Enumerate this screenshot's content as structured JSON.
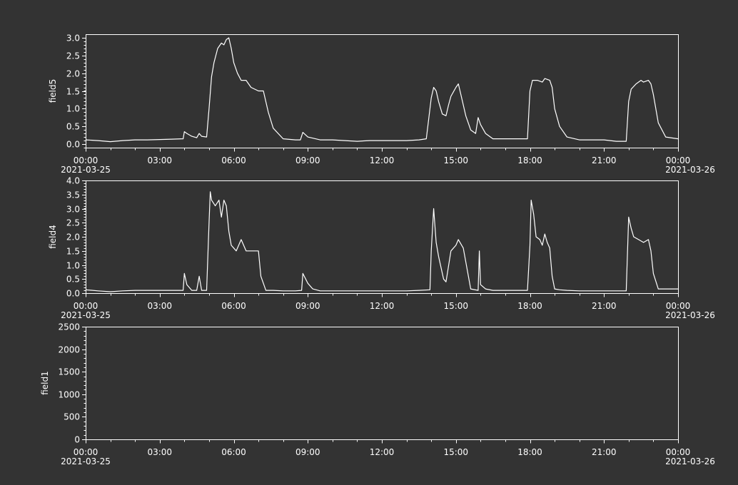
{
  "theme": {
    "background": "#333333",
    "foreground": "#ffffff"
  },
  "chart_data": [
    {
      "type": "line",
      "ylabel": "field5",
      "ylim": [
        -0.1,
        3.1
      ],
      "yticks": [
        0.0,
        0.5,
        1.0,
        1.5,
        2.0,
        2.5,
        3.0
      ],
      "ytick_labels": [
        "0.0",
        "0.5",
        "1.0",
        "1.5",
        "2.0",
        "2.5",
        "3.0"
      ],
      "xlim": [
        0,
        24
      ],
      "xtick_labels": [
        "00:00",
        "03:00",
        "06:00",
        "09:00",
        "12:00",
        "15:00",
        "18:00",
        "21:00",
        "00:00"
      ],
      "date_start": "2021-03-25",
      "date_end": "2021-03-26",
      "series": [
        {
          "x": [
            0,
            0.5,
            1,
            1.5,
            2,
            2.5,
            3,
            3.5,
            3.95,
            4.0,
            4.1,
            4.3,
            4.5,
            4.6,
            4.7,
            4.9,
            5.0,
            5.1,
            5.2,
            5.35,
            5.5,
            5.6,
            5.7,
            5.8,
            5.9,
            6.0,
            6.15,
            6.3,
            6.5,
            6.7,
            7.0,
            7.2,
            7.4,
            7.6,
            8.0,
            8.5,
            8.7,
            8.8,
            9.0,
            9.5,
            10,
            10.5,
            11,
            11.5,
            12,
            12.5,
            13,
            13.5,
            13.8,
            14.0,
            14.1,
            14.2,
            14.3,
            14.45,
            14.6,
            14.7,
            14.8,
            15.0,
            15.1,
            15.2,
            15.4,
            15.6,
            15.8,
            15.9,
            16.0,
            16.2,
            16.5,
            17,
            17.5,
            17.9,
            18.0,
            18.1,
            18.3,
            18.5,
            18.6,
            18.8,
            18.9,
            19.0,
            19.2,
            19.5,
            20,
            20.5,
            21,
            21.5,
            21.9,
            22.0,
            22.1,
            22.3,
            22.5,
            22.6,
            22.8,
            22.9,
            23.0,
            23.2,
            23.5,
            24
          ],
          "y": [
            0.12,
            0.1,
            0.07,
            0.1,
            0.12,
            0.12,
            0.13,
            0.14,
            0.15,
            0.35,
            0.3,
            0.22,
            0.18,
            0.3,
            0.22,
            0.2,
            1.0,
            1.9,
            2.3,
            2.7,
            2.85,
            2.8,
            2.95,
            3.0,
            2.7,
            2.3,
            2.0,
            1.8,
            1.8,
            1.6,
            1.5,
            1.5,
            0.9,
            0.45,
            0.15,
            0.12,
            0.12,
            0.33,
            0.2,
            0.12,
            0.12,
            0.1,
            0.08,
            0.1,
            0.1,
            0.1,
            0.1,
            0.12,
            0.15,
            1.3,
            1.6,
            1.5,
            1.2,
            0.85,
            0.8,
            1.1,
            1.35,
            1.6,
            1.7,
            1.4,
            0.8,
            0.4,
            0.3,
            0.75,
            0.55,
            0.3,
            0.15,
            0.15,
            0.15,
            0.15,
            1.5,
            1.8,
            1.8,
            1.75,
            1.85,
            1.8,
            1.6,
            1.0,
            0.5,
            0.2,
            0.12,
            0.12,
            0.12,
            0.08,
            0.08,
            1.2,
            1.55,
            1.7,
            1.8,
            1.75,
            1.8,
            1.7,
            1.4,
            0.6,
            0.2,
            0.15
          ]
        }
      ]
    },
    {
      "type": "line",
      "ylabel": "field4",
      "ylim": [
        0.0,
        4.0
      ],
      "yticks": [
        0.0,
        0.5,
        1.0,
        1.5,
        2.0,
        2.5,
        3.0,
        3.5,
        4.0
      ],
      "ytick_labels": [
        "0.0",
        "0.5",
        "1.0",
        "1.5",
        "2.0",
        "2.5",
        "3.0",
        "3.5",
        "4.0"
      ],
      "xlim": [
        0,
        24
      ],
      "xtick_labels": [
        "00:00",
        "03:00",
        "06:00",
        "09:00",
        "12:00",
        "15:00",
        "18:00",
        "21:00",
        "00:00"
      ],
      "date_start": "2021-03-25",
      "date_end": "2021-03-26",
      "series": [
        {
          "x": [
            0,
            0.5,
            1,
            1.5,
            2,
            2.5,
            3,
            3.5,
            3.95,
            4.0,
            4.1,
            4.3,
            4.5,
            4.6,
            4.7,
            4.9,
            5.0,
            5.05,
            5.1,
            5.25,
            5.4,
            5.5,
            5.6,
            5.7,
            5.8,
            5.9,
            6.0,
            6.1,
            6.3,
            6.5,
            6.7,
            7.0,
            7.1,
            7.3,
            7.6,
            8.0,
            8.5,
            8.75,
            8.8,
            9.0,
            9.2,
            9.5,
            10,
            10.5,
            11,
            11.5,
            12,
            12.5,
            13,
            13.5,
            13.95,
            14.0,
            14.1,
            14.2,
            14.3,
            14.5,
            14.6,
            14.8,
            15.0,
            15.1,
            15.3,
            15.6,
            15.9,
            15.95,
            16.0,
            16.2,
            16.5,
            17,
            17.5,
            17.9,
            18.0,
            18.05,
            18.15,
            18.25,
            18.4,
            18.5,
            18.6,
            18.7,
            18.8,
            18.9,
            19.0,
            19.2,
            19.5,
            20,
            20.5,
            21,
            21.5,
            21.9,
            22.0,
            22.1,
            22.2,
            22.4,
            22.6,
            22.8,
            22.9,
            23.0,
            23.2,
            23.5,
            24
          ],
          "y": [
            0.12,
            0.08,
            0.05,
            0.08,
            0.1,
            0.1,
            0.1,
            0.1,
            0.1,
            0.7,
            0.3,
            0.1,
            0.1,
            0.6,
            0.1,
            0.1,
            2.5,
            3.6,
            3.3,
            3.1,
            3.3,
            2.7,
            3.3,
            3.1,
            2.2,
            1.7,
            1.6,
            1.5,
            1.9,
            1.5,
            1.5,
            1.5,
            0.6,
            0.1,
            0.1,
            0.08,
            0.08,
            0.1,
            0.7,
            0.35,
            0.15,
            0.08,
            0.08,
            0.08,
            0.08,
            0.08,
            0.08,
            0.08,
            0.08,
            0.1,
            0.12,
            1.5,
            3.0,
            1.8,
            1.3,
            0.5,
            0.4,
            1.5,
            1.7,
            1.9,
            1.6,
            0.15,
            0.1,
            1.5,
            0.3,
            0.15,
            0.1,
            0.1,
            0.1,
            0.1,
            1.7,
            3.3,
            2.8,
            2.0,
            1.9,
            1.7,
            2.1,
            1.8,
            1.6,
            0.6,
            0.15,
            0.12,
            0.1,
            0.08,
            0.08,
            0.08,
            0.08,
            0.08,
            2.7,
            2.3,
            2.0,
            1.9,
            1.8,
            1.9,
            1.5,
            0.7,
            0.15,
            0.15,
            0.15
          ]
        }
      ]
    },
    {
      "type": "line",
      "ylabel": "field1",
      "ylim": [
        0,
        2500
      ],
      "yticks": [
        0,
        500,
        1000,
        1500,
        2000,
        2500
      ],
      "ytick_labels": [
        "0",
        "500",
        "1000",
        "1500",
        "2000",
        "2500"
      ],
      "xlim": [
        0,
        24
      ],
      "xtick_labels": [
        "00:00",
        "03:00",
        "06:00",
        "09:00",
        "12:00",
        "15:00",
        "18:00",
        "21:00",
        "00:00"
      ],
      "date_start": "2021-03-25",
      "date_end": "2021-03-26",
      "series": []
    }
  ]
}
